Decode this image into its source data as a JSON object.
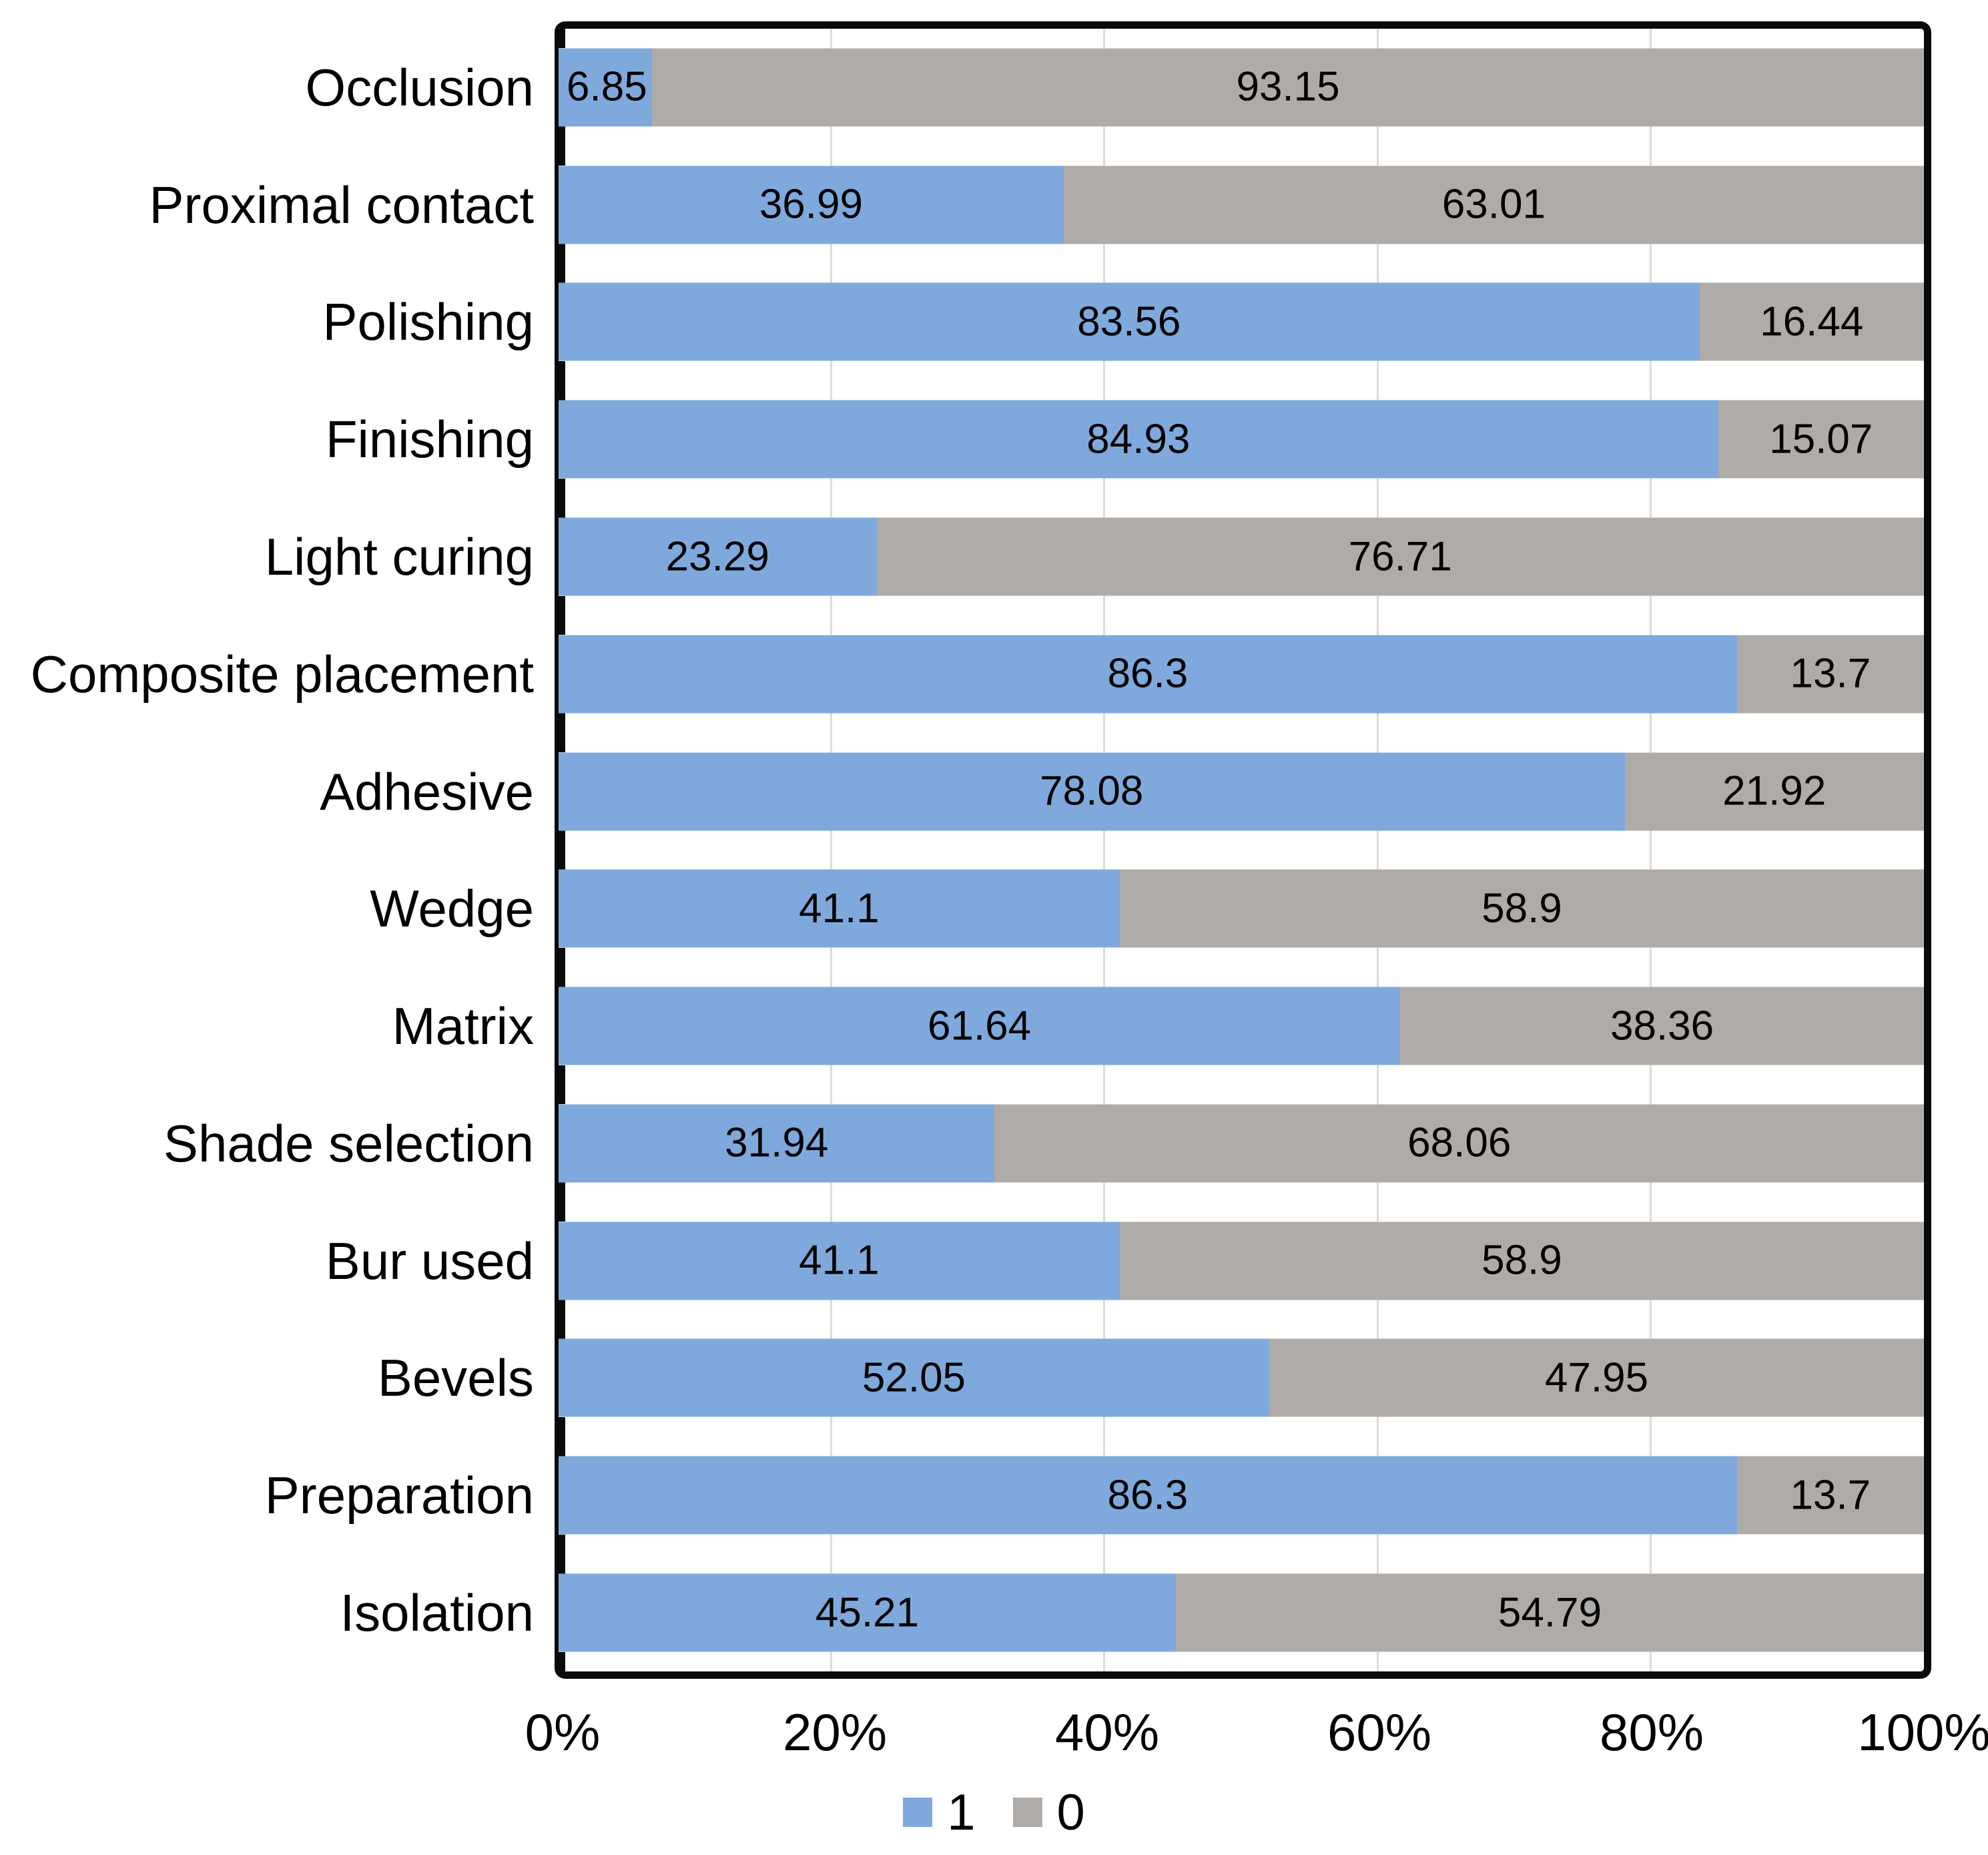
{
  "chart_data": {
    "type": "bar",
    "orientation": "horizontal-stacked",
    "title": "",
    "xlabel": "",
    "ylabel": "",
    "categories": [
      "Occlusion",
      "Proximal contact",
      "Polishing",
      "Finishing",
      "Light curing",
      "Composite placement",
      "Adhesive",
      "Wedge",
      "Matrix",
      "Shade selection",
      "Bur used",
      "Bevels",
      "Preparation",
      "Isolation"
    ],
    "series": [
      {
        "name": "1",
        "color": "#7FA9DC",
        "values": [
          6.85,
          36.99,
          83.56,
          84.93,
          23.29,
          86.3,
          78.08,
          41.1,
          61.64,
          31.94,
          41.1,
          52.05,
          86.3,
          45.21
        ]
      },
      {
        "name": "0",
        "color": "#AFABA8",
        "values": [
          93.15,
          63.01,
          16.44,
          15.07,
          76.71,
          13.7,
          21.92,
          58.9,
          38.36,
          68.06,
          58.9,
          47.95,
          13.7,
          54.79
        ]
      }
    ],
    "x_axis": {
      "min": 0,
      "max": 100,
      "ticks": [
        "0%",
        "20%",
        "40%",
        "60%",
        "80%",
        "100%"
      ]
    },
    "grid": true,
    "gridline_color": "#DCDCDC",
    "legend": {
      "position": "bottom",
      "entries": [
        "1",
        "0"
      ]
    }
  }
}
